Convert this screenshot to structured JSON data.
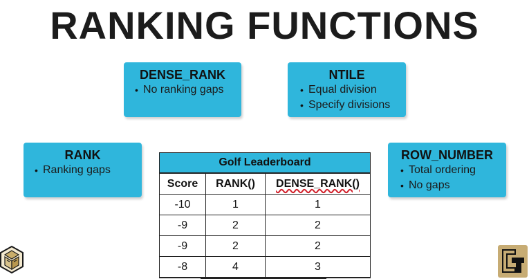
{
  "title": "RANKING FUNCTIONS",
  "cards": {
    "dense_rank": {
      "title": "DENSE_RANK",
      "items": [
        "No ranking gaps"
      ]
    },
    "ntile": {
      "title": "NTILE",
      "items": [
        "Equal division",
        "Specify divisions"
      ]
    },
    "rank": {
      "title": "RANK",
      "items": [
        "Ranking gaps"
      ]
    },
    "row_number": {
      "title": "ROW_NUMBER",
      "items": [
        "Total ordering",
        "No gaps"
      ]
    }
  },
  "leaderboard": {
    "title": "Golf Leaderboard",
    "headers": [
      "Score",
      "RANK()",
      "DENSE_RANK()"
    ],
    "rows": [
      [
        "-10",
        "1",
        "1"
      ],
      [
        "-9",
        "2",
        "2"
      ],
      [
        "-9",
        "2",
        "2"
      ],
      [
        "-8",
        "4",
        "3"
      ]
    ]
  },
  "colors": {
    "card": "#2fb6dc",
    "underline": "#d21f2a"
  },
  "bullet": "•"
}
